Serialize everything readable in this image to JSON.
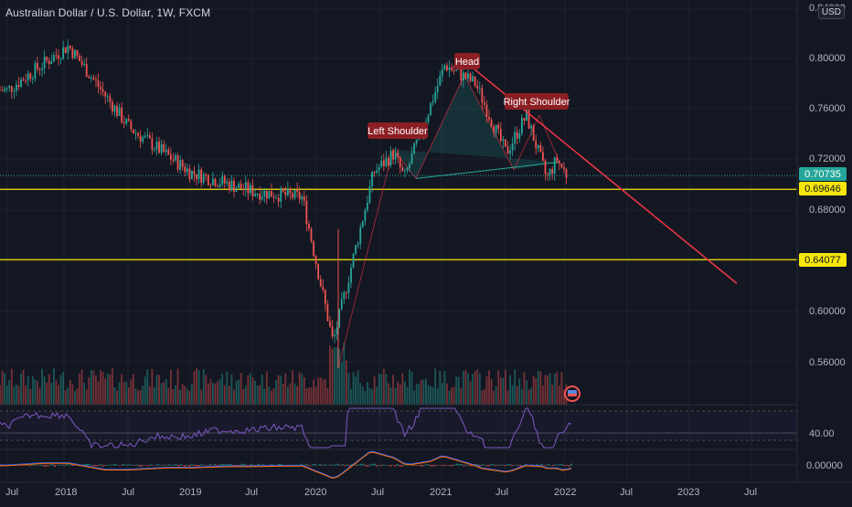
{
  "header": {
    "title": "Australian Dollar / U.S. Dollar, 1W, FXCM",
    "currency": "USD"
  },
  "price_axis": {
    "top_partial": "0.84000",
    "ticks": [
      "0.80000",
      "0.76000",
      "0.72000",
      "0.68000",
      "0.60000",
      "0.56000"
    ]
  },
  "price_badges": {
    "current": "0.70735",
    "line1": "0.69646",
    "line2": "0.64077"
  },
  "time_axis": [
    "Jul",
    "2018",
    "Jul",
    "2019",
    "Jul",
    "2020",
    "Jul",
    "2021",
    "Jul",
    "2022",
    "Jul",
    "2023",
    "Jul"
  ],
  "annotations": {
    "left_shoulder": "Left Shoulder",
    "head": "Head",
    "right_shoulder": "Right Shoulder"
  },
  "rsi": {
    "level_label": "40.00"
  },
  "macd": {
    "level_label": "0.00000"
  },
  "colors": {
    "background": "#131722",
    "bull": "#26a69a",
    "bear": "#ef5350",
    "horizontal_line": "#f5e60b",
    "trendline": "#f23645",
    "rsi_line": "#7e57c2",
    "macd_line": "#2962ff",
    "signal_line": "#ff6d00",
    "label_bg": "#8b1f24"
  },
  "chart_data": {
    "type": "candlestick",
    "title": "Australian Dollar / U.S. Dollar, 1W, FXCM",
    "ylim": [
      0.52,
      0.84
    ],
    "horizontal_levels": [
      0.69646,
      0.64077
    ],
    "current_price": 0.70735,
    "key_points": [
      {
        "x": "2017-07",
        "y": 0.775
      },
      {
        "x": "2018-01",
        "y": 0.81
      },
      {
        "x": "2018-07",
        "y": 0.745
      },
      {
        "x": "2019-01",
        "y": 0.71
      },
      {
        "x": "2019-07",
        "y": 0.695
      },
      {
        "x": "2019-12",
        "y": 0.69
      },
      {
        "x": "2020-03",
        "y": 0.575
      },
      {
        "x": "2020-07",
        "y": 0.71
      },
      {
        "x": "2020-09",
        "y": 0.725
      },
      {
        "x": "2020-10",
        "y": 0.705
      },
      {
        "x": "2021-02",
        "y": 0.795
      },
      {
        "x": "2021-05",
        "y": 0.78
      },
      {
        "x": "2021-08",
        "y": 0.725
      },
      {
        "x": "2021-10",
        "y": 0.755
      },
      {
        "x": "2021-12",
        "y": 0.705
      },
      {
        "x": "2022-01",
        "y": 0.72
      },
      {
        "x": "2022-02",
        "y": 0.70735
      }
    ],
    "pattern": "head-and-shoulders",
    "series": [
      {
        "name": "Left Shoulder",
        "values": [
          0.725
        ]
      },
      {
        "name": "Head",
        "values": [
          0.795
        ]
      },
      {
        "name": "Right Shoulder",
        "values": [
          0.755
        ]
      }
    ]
  }
}
